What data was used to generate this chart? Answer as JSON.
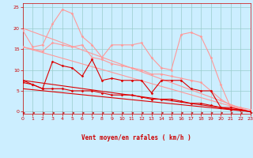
{
  "title": "",
  "xlabel": "Vent moyen/en rafales ( km/h )",
  "background_color": "#cceeff",
  "grid_color": "#99cccc",
  "xlim": [
    0,
    23
  ],
  "ylim": [
    0,
    26
  ],
  "yticks": [
    0,
    5,
    10,
    15,
    20,
    25
  ],
  "xticks": [
    0,
    1,
    2,
    3,
    4,
    5,
    6,
    7,
    8,
    9,
    10,
    11,
    12,
    13,
    14,
    15,
    16,
    17,
    18,
    19,
    20,
    21,
    22,
    23
  ],
  "lines": [
    {
      "x": [
        0,
        1,
        2,
        3,
        4,
        5,
        6,
        7,
        8,
        9,
        10,
        11,
        12,
        13,
        14,
        15,
        16,
        17,
        18,
        19,
        20,
        21,
        22,
        23
      ],
      "y": [
        19.5,
        15.5,
        16,
        21,
        24.5,
        23.5,
        18,
        16,
        13,
        16,
        16,
        16,
        16.5,
        13,
        10.5,
        10,
        18.5,
        19,
        18,
        13,
        6.5,
        1,
        0.5,
        0
      ],
      "color": "#ff9999",
      "linewidth": 0.8,
      "marker": "D",
      "markersize": 1.5,
      "zorder": 3
    },
    {
      "x": [
        0,
        1,
        2,
        3,
        4,
        5,
        6,
        7,
        8,
        9,
        10,
        11,
        12,
        13,
        14,
        15,
        16,
        17,
        18,
        19,
        20,
        21,
        22,
        23
      ],
      "y": [
        15.5,
        15,
        14.5,
        16.5,
        16,
        15.5,
        16,
        13,
        12.5,
        11.5,
        11,
        10.5,
        10,
        9,
        9,
        8.5,
        8,
        7.5,
        7,
        5,
        3,
        1.5,
        1,
        0.5
      ],
      "color": "#ff9999",
      "linewidth": 0.8,
      "marker": "D",
      "markersize": 1.5,
      "zorder": 3
    },
    {
      "x": [
        0,
        1,
        2,
        3,
        4,
        5,
        6,
        7,
        8,
        9,
        10,
        11,
        12,
        13,
        14,
        15,
        16,
        17,
        18,
        19,
        20,
        21,
        22,
        23
      ],
      "y": [
        7.5,
        6.5,
        5.5,
        12,
        11,
        10.5,
        8.5,
        12.5,
        7.5,
        8,
        7.5,
        7.5,
        7.5,
        4.5,
        7.5,
        7.5,
        7.5,
        5.5,
        5,
        5,
        1,
        1,
        0.5,
        0
      ],
      "color": "#dd0000",
      "linewidth": 0.8,
      "marker": "D",
      "markersize": 1.5,
      "zorder": 4
    },
    {
      "x": [
        0,
        1,
        2,
        3,
        4,
        5,
        6,
        7,
        8,
        9,
        10,
        11,
        12,
        13,
        14,
        15,
        16,
        17,
        18,
        19,
        20,
        21,
        22,
        23
      ],
      "y": [
        7,
        6.5,
        5.5,
        5.5,
        5.5,
        5,
        5,
        5,
        4.5,
        4,
        4,
        4,
        3.5,
        3,
        3,
        3,
        2.5,
        2,
        2,
        1.5,
        1,
        0.5,
        0.5,
        0
      ],
      "color": "#dd0000",
      "linewidth": 0.8,
      "marker": "D",
      "markersize": 1.5,
      "zorder": 4
    },
    {
      "x": [
        0,
        23
      ],
      "y": [
        20,
        0
      ],
      "color": "#ff9999",
      "linewidth": 0.8,
      "marker": null,
      "zorder": 2
    },
    {
      "x": [
        0,
        23
      ],
      "y": [
        15.5,
        0
      ],
      "color": "#ff9999",
      "linewidth": 0.8,
      "marker": null,
      "zorder": 2
    },
    {
      "x": [
        0,
        23
      ],
      "y": [
        7.5,
        0
      ],
      "color": "#dd0000",
      "linewidth": 0.8,
      "marker": null,
      "zorder": 2
    },
    {
      "x": [
        0,
        23
      ],
      "y": [
        5.5,
        0
      ],
      "color": "#dd0000",
      "linewidth": 0.8,
      "marker": null,
      "zorder": 2
    }
  ],
  "wind_arrows_x": [
    0,
    1,
    2,
    3,
    4,
    5,
    6,
    7,
    8,
    9,
    10,
    11,
    12,
    13,
    14,
    15,
    16,
    17,
    18,
    19,
    20,
    21,
    22,
    23
  ],
  "arrow_color": "#cc0000",
  "tick_color": "#cc0000",
  "label_color": "#cc0000",
  "tick_fontsize": 4.5,
  "xlabel_fontsize": 5.5
}
